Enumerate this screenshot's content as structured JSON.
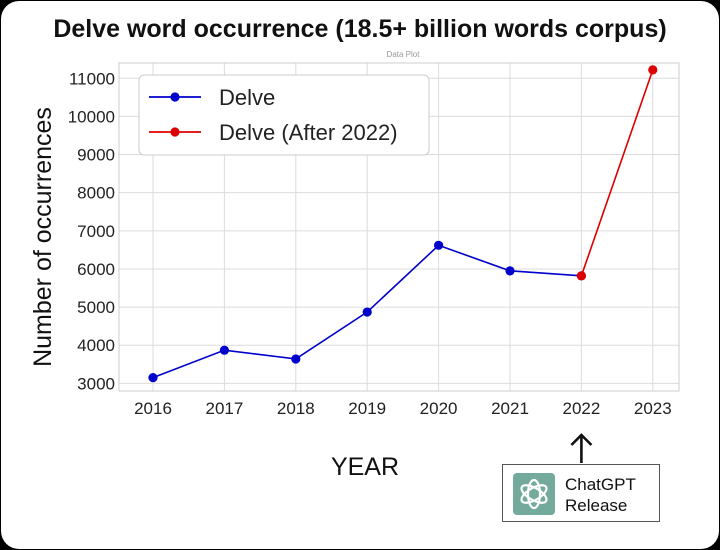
{
  "title": "Delve word occurrence (18.5+ billion words corpus)",
  "subtitle_faint": "Data Plot",
  "annotation": {
    "line1": "ChatGPT",
    "line2": "Release",
    "arrow_year": "2022",
    "logo_icon": "chatgpt-logo-icon"
  },
  "colors": {
    "delve": "#0000cc",
    "delve_after": "#dd0000",
    "logo_bg": "#74aa9c"
  },
  "chart_data": {
    "type": "line",
    "title": "Delve word occurrence (18.5+ billion words corpus)",
    "xlabel": "YEAR",
    "ylabel": "Number of occurrences",
    "x": [
      "2016",
      "2017",
      "2018",
      "2019",
      "2020",
      "2021",
      "2022",
      "2023"
    ],
    "ylim": [
      2800,
      11400
    ],
    "yticks": [
      3000,
      4000,
      5000,
      6000,
      7000,
      8000,
      9000,
      10000,
      11000
    ],
    "grid": true,
    "legend_position": "top-left",
    "series": [
      {
        "name": "Delve",
        "x": [
          "2016",
          "2017",
          "2018",
          "2019",
          "2020",
          "2021",
          "2022"
        ],
        "values": [
          3150,
          3870,
          3640,
          4870,
          6620,
          5950,
          5820
        ]
      },
      {
        "name": "Delve (After 2022)",
        "x": [
          "2022",
          "2023"
        ],
        "values": [
          5820,
          11220
        ]
      }
    ]
  }
}
